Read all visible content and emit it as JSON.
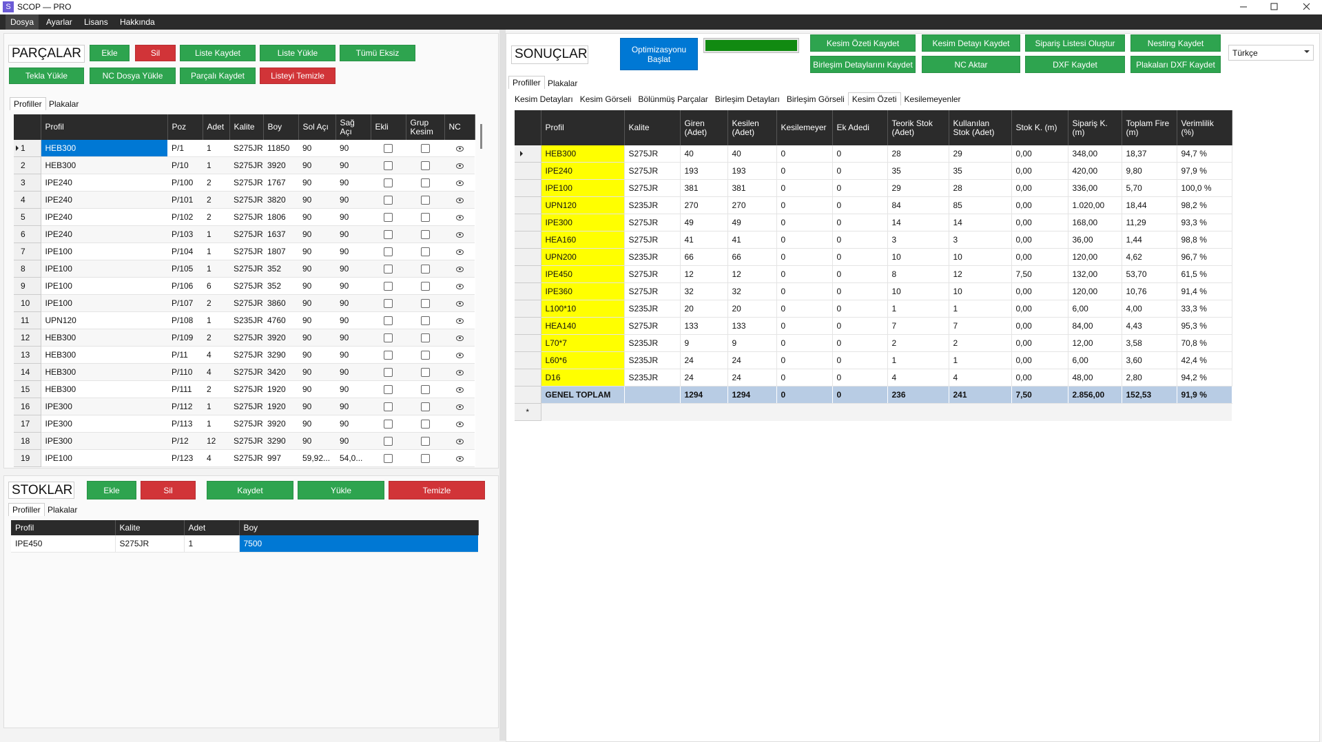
{
  "window": {
    "icon": "S",
    "title": "SCOP — PRO"
  },
  "menu": [
    "Dosya",
    "Ayarlar",
    "Lisans",
    "Hakkında"
  ],
  "parts": {
    "title": "PARÇALAR",
    "buttons": [
      "Ekle",
      "Sil",
      "Liste Kaydet",
      "Liste Yükle",
      "Tümü Eksiz",
      "Tekla Yükle",
      "NC Dosya Yükle",
      "Parçalı Kaydet",
      "Listeyi Temizle"
    ],
    "tabs": [
      "Profiller",
      "Plakalar"
    ],
    "columns": [
      "Profil",
      "Poz",
      "Adet",
      "Kalite",
      "Boy",
      "Sol Açı",
      "Sağ Açı",
      "Ekli",
      "Grup Kesim",
      "NC"
    ],
    "rows": [
      [
        "1",
        "HEB300",
        "P/1",
        "1",
        "S275JR",
        "11850",
        "90",
        "90"
      ],
      [
        "2",
        "HEB300",
        "P/10",
        "1",
        "S275JR",
        "3920",
        "90",
        "90"
      ],
      [
        "3",
        "IPE240",
        "P/100",
        "2",
        "S275JR",
        "1767",
        "90",
        "90"
      ],
      [
        "4",
        "IPE240",
        "P/101",
        "2",
        "S275JR",
        "3820",
        "90",
        "90"
      ],
      [
        "5",
        "IPE240",
        "P/102",
        "2",
        "S275JR",
        "1806",
        "90",
        "90"
      ],
      [
        "6",
        "IPE240",
        "P/103",
        "1",
        "S275JR",
        "1637",
        "90",
        "90"
      ],
      [
        "7",
        "IPE100",
        "P/104",
        "1",
        "S275JR",
        "1807",
        "90",
        "90"
      ],
      [
        "8",
        "IPE100",
        "P/105",
        "1",
        "S275JR",
        "352",
        "90",
        "90"
      ],
      [
        "9",
        "IPE100",
        "P/106",
        "6",
        "S275JR",
        "352",
        "90",
        "90"
      ],
      [
        "10",
        "IPE100",
        "P/107",
        "2",
        "S275JR",
        "3860",
        "90",
        "90"
      ],
      [
        "11",
        "UPN120",
        "P/108",
        "1",
        "S235JR",
        "4760",
        "90",
        "90"
      ],
      [
        "12",
        "HEB300",
        "P/109",
        "2",
        "S275JR",
        "3920",
        "90",
        "90"
      ],
      [
        "13",
        "HEB300",
        "P/11",
        "4",
        "S275JR",
        "3290",
        "90",
        "90"
      ],
      [
        "14",
        "HEB300",
        "P/110",
        "4",
        "S275JR",
        "3420",
        "90",
        "90"
      ],
      [
        "15",
        "HEB300",
        "P/111",
        "2",
        "S275JR",
        "1920",
        "90",
        "90"
      ],
      [
        "16",
        "IPE300",
        "P/112",
        "1",
        "S275JR",
        "1920",
        "90",
        "90"
      ],
      [
        "17",
        "IPE300",
        "P/113",
        "1",
        "S275JR",
        "3920",
        "90",
        "90"
      ],
      [
        "18",
        "IPE300",
        "P/12",
        "12",
        "S275JR",
        "3290",
        "90",
        "90"
      ],
      [
        "19",
        "IPE100",
        "P/123",
        "4",
        "S275JR",
        "997",
        "59,92...",
        "54,0..."
      ]
    ]
  },
  "stocks": {
    "title": "STOKLAR",
    "buttons": [
      "Ekle",
      "Sil",
      "Kaydet",
      "Yükle",
      "Temizle"
    ],
    "tabs": [
      "Profiller",
      "Plakalar"
    ],
    "columns": [
      "Profil",
      "Kalite",
      "Adet",
      "Boy"
    ],
    "rows": [
      [
        "IPE450",
        "S275JR",
        "1",
        "7500"
      ]
    ]
  },
  "results": {
    "title": "SONUÇLAR",
    "optimize_button": "Optimizasyonu Başlat",
    "buttons": [
      "Kesim Özeti Kaydet",
      "Kesim Detayı Kaydet",
      "Sipariş Listesi Oluştur",
      "Nesting Kaydet",
      "Birleşim Detaylarını Kaydet",
      "NC Aktar",
      "DXF Kaydet",
      "Plakaları DXF Kaydet"
    ],
    "language": "Türkçe",
    "tabs": [
      "Profiller",
      "Plakalar"
    ],
    "detail_tabs": [
      "Kesim Detayları",
      "Kesim Görseli",
      "Bölünmüş Parçalar",
      "Birleşim Detayları",
      "Birleşim Görseli",
      "Kesim Özeti",
      "Kesilemeyenler"
    ],
    "columns": [
      "Profil",
      "Kalite",
      "Giren (Adet)",
      "Kesilen (Adet)",
      "Kesilemeyer",
      "Ek Adedi",
      "Teorik Stok (Adet)",
      "Kullanılan Stok (Adet)",
      "Stok K. (m)",
      "Sipariş K. (m)",
      "Toplam Fire (m)",
      "Verimlilik (%)"
    ],
    "rows": [
      [
        "HEB300",
        "S275JR",
        "40",
        "40",
        "0",
        "0",
        "28",
        "29",
        "0,00",
        "348,00",
        "18,37",
        "94,7 %"
      ],
      [
        "IPE240",
        "S275JR",
        "193",
        "193",
        "0",
        "0",
        "35",
        "35",
        "0,00",
        "420,00",
        "9,80",
        "97,9 %"
      ],
      [
        "IPE100",
        "S275JR",
        "381",
        "381",
        "0",
        "0",
        "29",
        "28",
        "0,00",
        "336,00",
        "5,70",
        "100,0 %"
      ],
      [
        "UPN120",
        "S235JR",
        "270",
        "270",
        "0",
        "0",
        "84",
        "85",
        "0,00",
        "1.020,00",
        "18,44",
        "98,2 %"
      ],
      [
        "IPE300",
        "S275JR",
        "49",
        "49",
        "0",
        "0",
        "14",
        "14",
        "0,00",
        "168,00",
        "11,29",
        "93,3 %"
      ],
      [
        "HEA160",
        "S275JR",
        "41",
        "41",
        "0",
        "0",
        "3",
        "3",
        "0,00",
        "36,00",
        "1,44",
        "98,8 %"
      ],
      [
        "UPN200",
        "S235JR",
        "66",
        "66",
        "0",
        "0",
        "10",
        "10",
        "0,00",
        "120,00",
        "4,62",
        "96,7 %"
      ],
      [
        "IPE450",
        "S275JR",
        "12",
        "12",
        "0",
        "0",
        "8",
        "12",
        "7,50",
        "132,00",
        "53,70",
        "61,5 %"
      ],
      [
        "IPE360",
        "S275JR",
        "32",
        "32",
        "0",
        "0",
        "10",
        "10",
        "0,00",
        "120,00",
        "10,76",
        "91,4 %"
      ],
      [
        "L100*10",
        "S235JR",
        "20",
        "20",
        "0",
        "0",
        "1",
        "1",
        "0,00",
        "6,00",
        "4,00",
        "33,3 %"
      ],
      [
        "HEA140",
        "S275JR",
        "133",
        "133",
        "0",
        "0",
        "7",
        "7",
        "0,00",
        "84,00",
        "4,43",
        "95,3 %"
      ],
      [
        "L70*7",
        "S235JR",
        "9",
        "9",
        "0",
        "0",
        "2",
        "2",
        "0,00",
        "12,00",
        "3,58",
        "70,8 %"
      ],
      [
        "L60*6",
        "S235JR",
        "24",
        "24",
        "0",
        "0",
        "1",
        "1",
        "0,00",
        "6,00",
        "3,60",
        "42,4 %"
      ],
      [
        "D16",
        "S235JR",
        "24",
        "24",
        "0",
        "0",
        "4",
        "4",
        "0,00",
        "48,00",
        "2,80",
        "94,2 %"
      ]
    ],
    "total": {
      "label": "GENEL TOPLAM",
      "values": [
        "1294",
        "1294",
        "0",
        "0",
        "236",
        "241",
        "7,50",
        "2.856,00",
        "152,53",
        "91,9 %"
      ]
    },
    "new_row_marker": "*"
  }
}
